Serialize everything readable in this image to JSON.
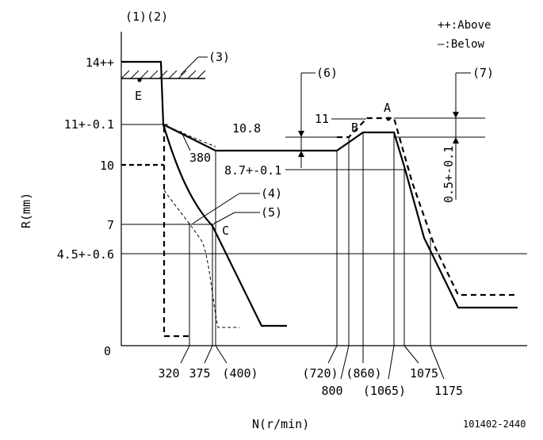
{
  "header": {
    "tags": "(1)(2)"
  },
  "legend": {
    "above": "++:Above",
    "below": "—:Below"
  },
  "axes": {
    "y_label": "R(mm)",
    "x_label": "N(r/min)",
    "y_ticks": [
      "14++",
      "11+-0.1",
      "10",
      "7",
      "4.5+-0.6",
      "0"
    ],
    "x_ticks": [
      "320",
      "375",
      "(400)",
      "(720)",
      "800",
      "(860)",
      "(1065)",
      "1075",
      "1175"
    ]
  },
  "callouts": {
    "c3": "(3)",
    "c4": "(4)",
    "c5": "(5)",
    "c6": "(6)",
    "c7": "(7)",
    "v380": "380",
    "v10_8": "10.8",
    "v8_7": "8.7+-0.1",
    "v11": "11",
    "v05": "0.5+-0.1"
  },
  "points": {
    "A": "A",
    "B": "B",
    "C": "C",
    "E": "E"
  },
  "footer": {
    "code": "101402-2440"
  }
}
